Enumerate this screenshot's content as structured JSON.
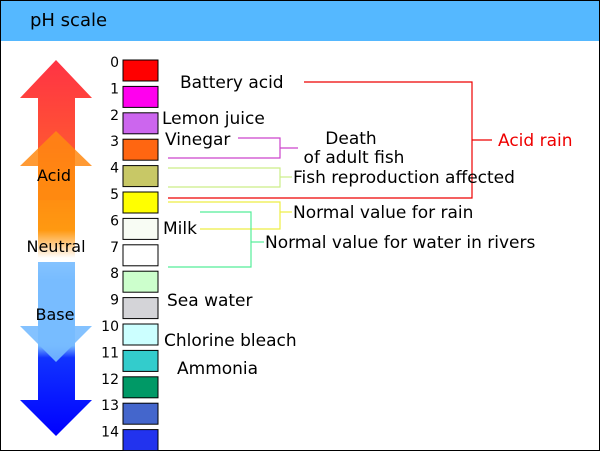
{
  "title": "pH scale",
  "scale": {
    "numbers": [
      "0",
      "1",
      "2",
      "3",
      "4",
      "5",
      "6",
      "7",
      "8",
      "9",
      "10",
      "11",
      "12",
      "13",
      "14"
    ],
    "colors": [
      "#ff0000",
      "#ff00ee",
      "#cc66ee",
      "#ff6611",
      "#c8c866",
      "#ffff00",
      "#f8fcf4",
      "#ffffff",
      "#ccffcc",
      "#d4d4d8",
      "#ccffff",
      "#33cccc",
      "#009966",
      "#4466cc",
      "#2233ee"
    ]
  },
  "arrow": {
    "acid_label": "Acid",
    "neutral_label": "Neutral",
    "base_label": "Base"
  },
  "labels": {
    "battery_acid": "Battery acid",
    "lemon_juice": "Lemon juice",
    "vinegar": "Vinegar",
    "death_line1": "Death",
    "death_line2": "of adult fish",
    "acid_rain": "Acid rain",
    "fish_repro": "Fish reproduction affected",
    "normal_rain": "Normal value for rain",
    "milk": "Milk",
    "normal_rivers": "Normal value for water in rivers",
    "sea_water": "Sea water",
    "chlorine": "Chlorine bleach",
    "ammonia": "Ammonia"
  },
  "colors": {
    "acid_rain": "#ee0000",
    "death_bracket": "#cc44cc",
    "fish_repro": "#ccee88",
    "normal_rain": "#eeee44",
    "normal_rivers": "#55ee99",
    "acid_arrow_top": "#ff3344",
    "acid_arrow_mid": "#ff8811",
    "base_arrow_top": "#77bbff",
    "base_arrow_bottom": "#0000ff"
  }
}
